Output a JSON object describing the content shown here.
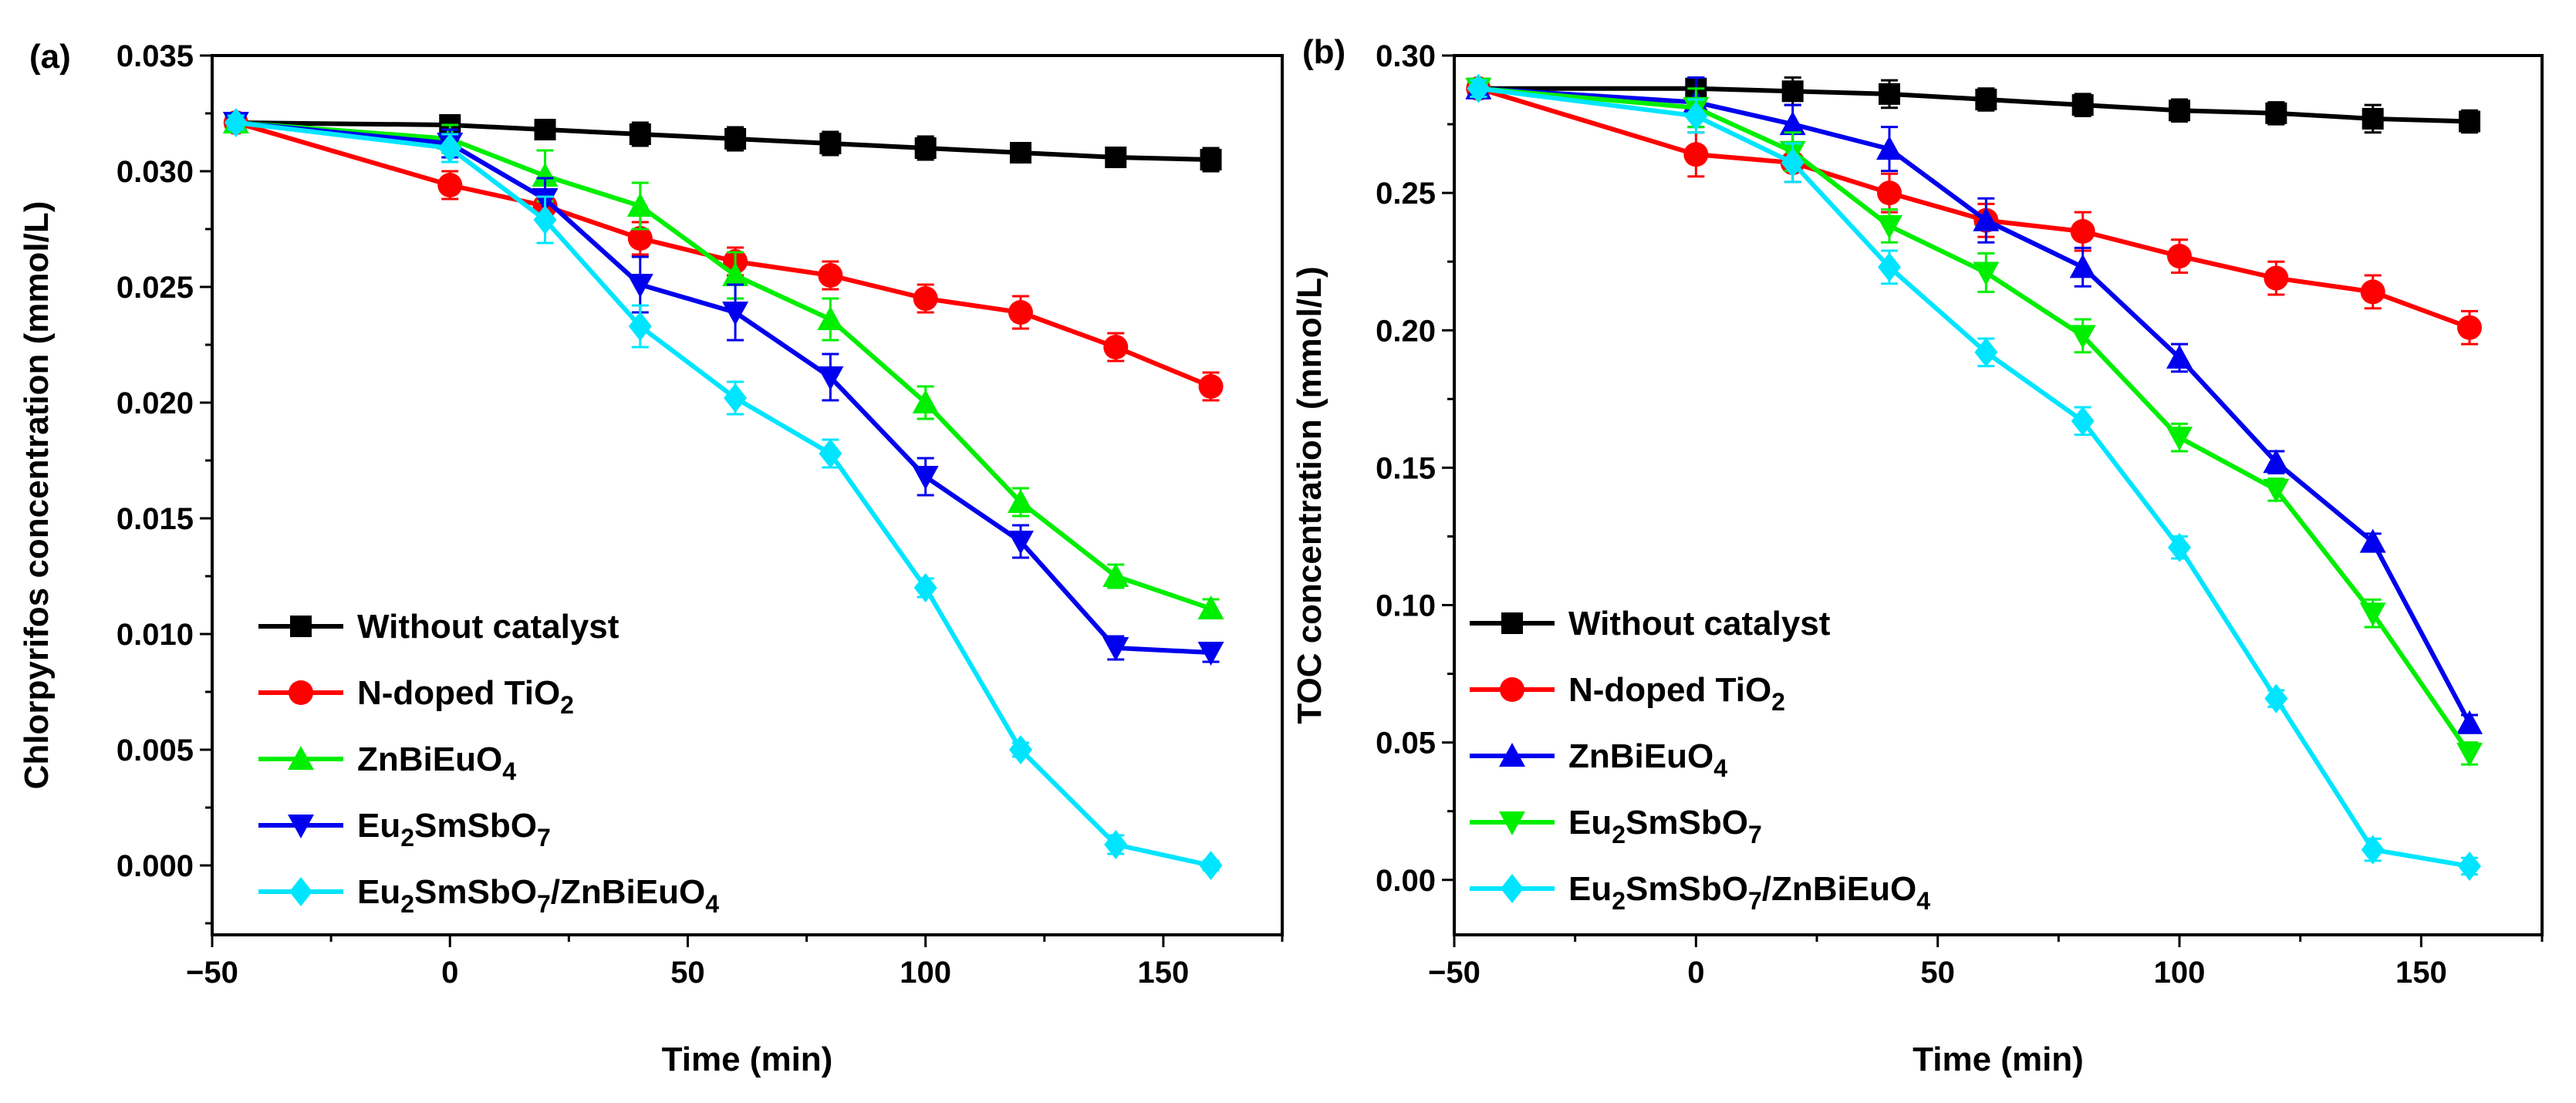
{
  "chart_data": [
    {
      "type": "line",
      "panel_label": "(a)",
      "xlabel": "Time (min)",
      "ylabel": "Chlorpyrifos concentration (mmol/L)",
      "xlim": [
        -50,
        175
      ],
      "ylim": [
        -0.003,
        0.035
      ],
      "xticks": [
        -50,
        0,
        50,
        100,
        150
      ],
      "xtick_labels": [
        "−50",
        "0",
        "50",
        "100",
        "150"
      ],
      "yticks": [
        0.0,
        0.005,
        0.01,
        0.015,
        0.02,
        0.025,
        0.03,
        0.035
      ],
      "ytick_labels": [
        "0.000",
        "0.005",
        "0.010",
        "0.015",
        "0.020",
        "0.025",
        "0.030",
        "0.035"
      ],
      "legend_position": "bottom-left",
      "x": [
        -45,
        0,
        20,
        40,
        60,
        80,
        100,
        120,
        140,
        160
      ],
      "series": [
        {
          "name": "Without catalyst",
          "label_parts": [
            [
              "Without catalyst",
              ""
            ]
          ],
          "color": "#000000",
          "marker": "square",
          "values": [
            0.0321,
            0.032,
            0.0318,
            0.0316,
            0.0314,
            0.0312,
            0.031,
            0.0308,
            0.0306,
            0.0305
          ],
          "errors": [
            0.0004,
            0.0004,
            0.0004,
            0.0005,
            0.0005,
            0.0005,
            0.0005,
            0.0004,
            0.0004,
            0.0005
          ]
        },
        {
          "name": "N-doped TiO2",
          "label_parts": [
            [
              "N-doped TiO",
              ""
            ],
            [
              "2",
              "sub"
            ]
          ],
          "color": "#ff0000",
          "marker": "circle",
          "values": [
            0.0321,
            0.0294,
            0.0285,
            0.0271,
            0.0261,
            0.0255,
            0.0245,
            0.0239,
            0.0224,
            0.0207
          ],
          "errors": [
            0.0003,
            0.0006,
            0.0005,
            0.0007,
            0.0006,
            0.0006,
            0.0006,
            0.0007,
            0.0006,
            0.0006
          ]
        },
        {
          "name": "ZnBiEuO4",
          "label_parts": [
            [
              "ZnBiEuO",
              ""
            ],
            [
              "4",
              "sub"
            ]
          ],
          "color": "#00ee00",
          "marker": "triangle-up",
          "values": [
            0.0321,
            0.0314,
            0.0298,
            0.0285,
            0.0255,
            0.0236,
            0.02,
            0.0157,
            0.0125,
            0.0111
          ],
          "errors": [
            0.0003,
            0.0006,
            0.0011,
            0.001,
            0.001,
            0.0009,
            0.0007,
            0.0006,
            0.0005,
            0.0004
          ]
        },
        {
          "name": "Eu2SmSbO7",
          "label_parts": [
            [
              "Eu",
              ""
            ],
            [
              "2",
              "sub"
            ],
            [
              "SmSbO",
              ""
            ],
            [
              "7",
              "sub"
            ]
          ],
          "color": "#0000ee",
          "marker": "triangle-down",
          "values": [
            0.0321,
            0.0312,
            0.0288,
            0.0251,
            0.0239,
            0.0211,
            0.0168,
            0.014,
            0.0094,
            0.0092
          ],
          "errors": [
            0.0003,
            0.0006,
            0.0009,
            0.0012,
            0.0012,
            0.001,
            0.0008,
            0.0007,
            0.0005,
            0.0004
          ]
        },
        {
          "name": "Eu2SmSbO7/ZnBiEuO4",
          "label_parts": [
            [
              "Eu",
              ""
            ],
            [
              "2",
              "sub"
            ],
            [
              "SmSbO",
              ""
            ],
            [
              "7",
              "sub"
            ],
            [
              "/ZnBiEuO",
              ""
            ],
            [
              "4",
              "sub"
            ]
          ],
          "color": "#00e5ff",
          "marker": "diamond",
          "values": [
            0.0321,
            0.031,
            0.0279,
            0.0233,
            0.0202,
            0.0178,
            0.012,
            0.005,
            0.0009,
            0.0
          ],
          "errors": [
            0.0003,
            0.0006,
            0.001,
            0.0009,
            0.0007,
            0.0006,
            0.0004,
            0.0003,
            0.0004,
            0.0002
          ]
        }
      ]
    },
    {
      "type": "line",
      "panel_label": "(b)",
      "xlabel": "Time (min)",
      "ylabel": "TOC concentration (mmol/L)",
      "xlim": [
        -50,
        175
      ],
      "ylim": [
        -0.02,
        0.3
      ],
      "xticks": [
        -50,
        0,
        50,
        100,
        150
      ],
      "xtick_labels": [
        "−50",
        "0",
        "50",
        "100",
        "150"
      ],
      "yticks": [
        0.0,
        0.05,
        0.1,
        0.15,
        0.2,
        0.25,
        0.3
      ],
      "ytick_labels": [
        "0.00",
        "0.05",
        "0.10",
        "0.15",
        "0.20",
        "0.25",
        "0.30"
      ],
      "legend_position": "bottom-left",
      "x": [
        -45,
        0,
        20,
        40,
        60,
        80,
        100,
        120,
        140,
        160
      ],
      "series": [
        {
          "name": "Without catalyst",
          "label_parts": [
            [
              "Without catalyst",
              ""
            ]
          ],
          "color": "#000000",
          "marker": "square",
          "values": [
            0.288,
            0.288,
            0.287,
            0.286,
            0.284,
            0.282,
            0.28,
            0.279,
            0.277,
            0.276
          ],
          "errors": [
            0.003,
            0.004,
            0.005,
            0.005,
            0.004,
            0.004,
            0.004,
            0.004,
            0.005,
            0.004
          ]
        },
        {
          "name": "N-doped TiO2",
          "label_parts": [
            [
              "N-doped TiO",
              ""
            ],
            [
              "2",
              "sub"
            ]
          ],
          "color": "#ff0000",
          "marker": "circle",
          "values": [
            0.288,
            0.264,
            0.261,
            0.25,
            0.24,
            0.236,
            0.227,
            0.219,
            0.214,
            0.201
          ],
          "errors": [
            0.003,
            0.008,
            0.007,
            0.007,
            0.006,
            0.007,
            0.006,
            0.006,
            0.006,
            0.006
          ]
        },
        {
          "name": "ZnBiEuO4",
          "label_parts": [
            [
              "ZnBiEuO",
              ""
            ],
            [
              "4",
              "sub"
            ]
          ],
          "color": "#0000ee",
          "marker": "triangle-up",
          "values": [
            0.288,
            0.283,
            0.275,
            0.266,
            0.24,
            0.223,
            0.19,
            0.152,
            0.123,
            0.057
          ],
          "errors": [
            0.003,
            0.009,
            0.007,
            0.008,
            0.008,
            0.007,
            0.005,
            0.004,
            0.003,
            0.003
          ]
        },
        {
          "name": "Eu2SmSbO7",
          "label_parts": [
            [
              "Eu",
              ""
            ],
            [
              "2",
              "sub"
            ],
            [
              "SmSbO",
              ""
            ],
            [
              "7",
              "sub"
            ]
          ],
          "color": "#00ee00",
          "marker": "triangle-down",
          "values": [
            0.288,
            0.281,
            0.265,
            0.238,
            0.221,
            0.198,
            0.161,
            0.142,
            0.097,
            0.046
          ],
          "errors": [
            0.003,
            0.007,
            0.007,
            0.006,
            0.007,
            0.006,
            0.005,
            0.004,
            0.005,
            0.004
          ]
        },
        {
          "name": "Eu2SmSbO7/ZnBiEuO4",
          "label_parts": [
            [
              "Eu",
              ""
            ],
            [
              "2",
              "sub"
            ],
            [
              "SmSbO",
              ""
            ],
            [
              "7",
              "sub"
            ],
            [
              "/ZnBiEuO",
              ""
            ],
            [
              "4",
              "sub"
            ]
          ],
          "color": "#00e5ff",
          "marker": "diamond",
          "values": [
            0.288,
            0.278,
            0.261,
            0.223,
            0.192,
            0.167,
            0.121,
            0.066,
            0.011,
            0.005
          ],
          "errors": [
            0.003,
            0.006,
            0.007,
            0.006,
            0.005,
            0.005,
            0.004,
            0.003,
            0.004,
            0.003
          ]
        }
      ]
    }
  ]
}
